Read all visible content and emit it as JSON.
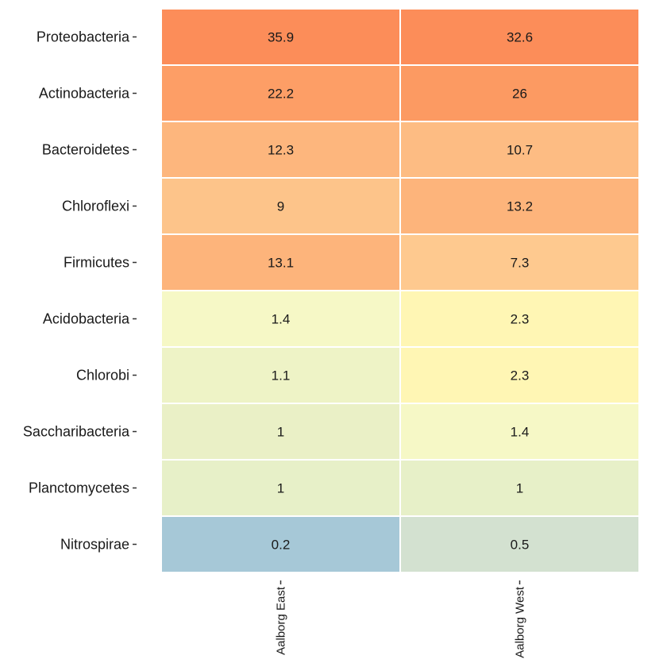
{
  "chart_data": {
    "type": "heatmap",
    "rows": [
      "Proteobacteria",
      "Actinobacteria",
      "Bacteroidetes",
      "Chloroflexi",
      "Firmicutes",
      "Acidobacteria",
      "Chlorobi",
      "Saccharibacteria",
      "Planctomycetes",
      "Nitrospirae"
    ],
    "columns": [
      "Aalborg East",
      "Aalborg West"
    ],
    "values": [
      [
        35.9,
        32.6
      ],
      [
        22.2,
        26
      ],
      [
        12.3,
        10.7
      ],
      [
        9,
        13.2
      ],
      [
        13.1,
        7.3
      ],
      [
        1.4,
        2.3
      ],
      [
        1.1,
        2.3
      ],
      [
        1,
        1.4
      ],
      [
        1,
        1
      ],
      [
        0.2,
        0.5
      ]
    ],
    "colors": [
      [
        "#fc8d59",
        "#fc8d59"
      ],
      [
        "#fd9e66",
        "#fc9a62"
      ],
      [
        "#fdb67d",
        "#fdbc83"
      ],
      [
        "#fdc48a",
        "#fdb47b"
      ],
      [
        "#fdb47b",
        "#fec98f"
      ],
      [
        "#f6f8c6",
        "#fff6b4"
      ],
      [
        "#eef3c6",
        "#fff6b4"
      ],
      [
        "#eaf0c6",
        "#f6f8c6"
      ],
      [
        "#e7f0c8",
        "#e7f0c8"
      ],
      [
        "#a6c8d7",
        "#d3e1d0"
      ]
    ],
    "grid": false,
    "legend": "none"
  }
}
